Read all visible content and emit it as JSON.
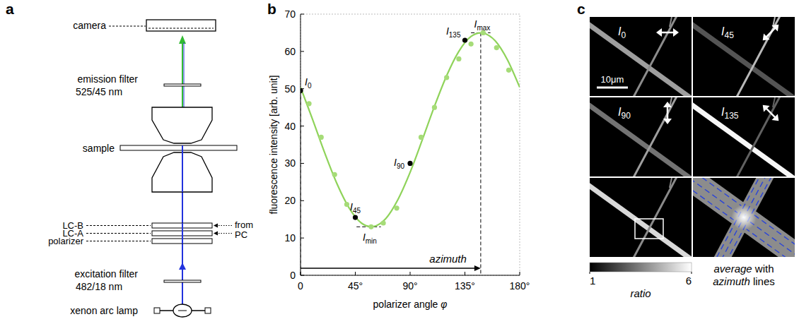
{
  "panel_labels": [
    "a",
    "b",
    "c"
  ],
  "setup": {
    "components": [
      {
        "label": "camera"
      },
      {
        "label": "emission filter",
        "detail": "525/45 nm"
      },
      {
        "label": "sample"
      },
      {
        "label": "LC-B"
      },
      {
        "label": "LC-A"
      },
      {
        "label": "polarizer"
      },
      {
        "label": "excitation filter",
        "detail": "482/18 nm"
      },
      {
        "label": "xenon arc lamp"
      }
    ],
    "controller": [
      "from",
      "PC"
    ]
  },
  "chart_data": {
    "type": "scatter",
    "x_label": "polarizer angle φ",
    "y_label": "fluorescence intensity [arb. unit]",
    "xlim": [
      0,
      180
    ],
    "ylim": [
      0,
      70
    ],
    "xticks": [
      0,
      {
        "value": 45,
        "label": "45°"
      },
      {
        "value": 90,
        "label": "90°"
      },
      {
        "value": 135,
        "label": "135°"
      },
      {
        "value": 180,
        "label": "180°"
      }
    ],
    "yticks": [
      0,
      10,
      20,
      30,
      40,
      50,
      60,
      70
    ],
    "grid": false,
    "series": [
      {
        "type": "scatter",
        "marker": "circle",
        "color": "#a6dc78",
        "x": [
          7,
          17,
          28,
          38,
          58,
          68,
          79,
          99,
          110,
          120,
          130,
          140,
          150,
          161,
          171
        ],
        "values": [
          46,
          37,
          27,
          19,
          13,
          14,
          18,
          37,
          45,
          53,
          58,
          62,
          65,
          61,
          55
        ]
      },
      {
        "type": "line",
        "line_style": "solid",
        "color": "#8fd35a",
        "x": [
          0,
          10,
          20,
          30,
          40,
          50,
          60,
          70,
          80,
          90,
          100,
          110,
          120,
          130,
          140,
          150,
          160,
          170,
          180
        ],
        "values": [
          50.4,
          41.7,
          32.7,
          24.5,
          18.0,
          14.0,
          13.1,
          15.2,
          20.3,
          27.6,
          36.3,
          45.3,
          53.5,
          60.0,
          64.0,
          64.9,
          62.8,
          57.7,
          50.4
        ]
      },
      {
        "type": "scatter",
        "marker": "circle",
        "color": "#000000",
        "x": [
          0,
          45,
          90,
          135
        ],
        "values": [
          49.5,
          15.5,
          30,
          63
        ],
        "labels": [
          "I0",
          "I45",
          "I90",
          "I135"
        ]
      }
    ],
    "annotations": {
      "max": {
        "label": "Imax",
        "value": 65,
        "angle": 148
      },
      "min": {
        "label": "Imin",
        "value": 13,
        "angle": 58
      },
      "azimuth": {
        "label": "azimuth",
        "from": 0,
        "to": 148
      }
    }
  },
  "images": {
    "tiles": [
      {
        "label": "I0",
        "angle": 0
      },
      {
        "label": "I45",
        "angle": 45
      },
      {
        "label": "I90",
        "angle": 90
      },
      {
        "label": "I135",
        "angle": 135
      }
    ],
    "scale_bar": "10μm",
    "colorbar": {
      "range": [
        1,
        6
      ],
      "ticks": [
        1,
        6
      ],
      "label": "ratio"
    },
    "caption": [
      "average with",
      "azimuth lines"
    ]
  }
}
